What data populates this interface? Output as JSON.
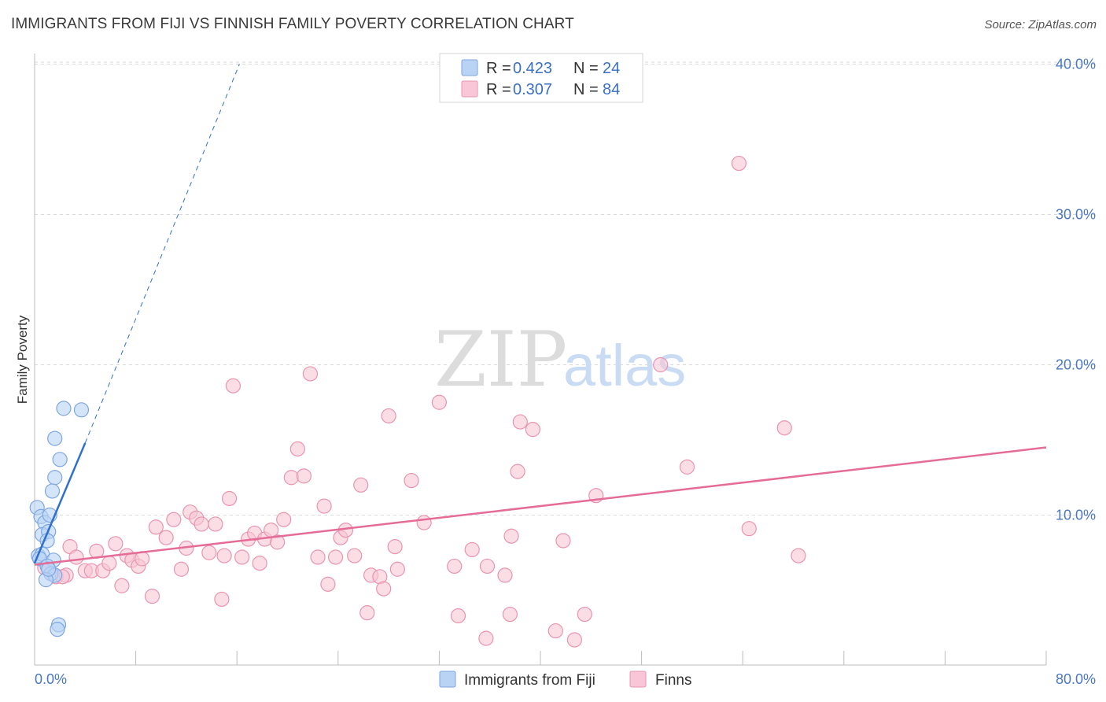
{
  "title": "IMMIGRANTS FROM FIJI VS FINNISH FAMILY POVERTY CORRELATION CHART",
  "source": "Source: ZipAtlas.com",
  "watermark": {
    "zip": "ZIP",
    "atlas": "atlas"
  },
  "colors": {
    "fiji_fill": "#b9d3f5",
    "fiji_stroke": "#7ea6e0",
    "fiji_line": "#2f6fd0",
    "finns_fill": "#f8c6d6",
    "finns_stroke": "#e994b0",
    "finns_line": "#e46c97",
    "grid": "#d9d9d9",
    "tick_text": "#4a78c4"
  },
  "legend": {
    "r_label": "R =",
    "n_label": "N =",
    "series": [
      {
        "r": "0.423",
        "n": "24"
      },
      {
        "r": "0.307",
        "n": "84"
      }
    ]
  },
  "chart_data": {
    "type": "scatter",
    "ylabel": "Family Poverty",
    "xlim": [
      0,
      80
    ],
    "ylim": [
      0,
      42
    ],
    "x_tick_labels": [
      "0.0%",
      "80.0%"
    ],
    "y_ticks": [
      10,
      20,
      30,
      40
    ],
    "y_tick_labels": [
      "10.0%",
      "20.0%",
      "30.0%",
      "40.0%"
    ],
    "grid": "horizontal dashed",
    "legend_position": "top-center",
    "series": [
      {
        "name": "Immigrants from Fiji",
        "points": [
          [
            0.2,
            10.5
          ],
          [
            0.5,
            9.9
          ],
          [
            0.8,
            9.5
          ],
          [
            1.2,
            10.0
          ],
          [
            0.6,
            8.7
          ],
          [
            1.1,
            8.9
          ],
          [
            1.0,
            8.3
          ],
          [
            0.3,
            7.3
          ],
          [
            0.6,
            7.4
          ],
          [
            0.4,
            7.1
          ],
          [
            1.5,
            7.0
          ],
          [
            1.0,
            6.6
          ],
          [
            1.3,
            6.1
          ],
          [
            1.6,
            6.0
          ],
          [
            0.9,
            5.7
          ],
          [
            1.6,
            12.5
          ],
          [
            1.4,
            11.6
          ],
          [
            1.6,
            15.1
          ],
          [
            2.0,
            13.7
          ],
          [
            2.3,
            17.1
          ],
          [
            3.7,
            17.0
          ],
          [
            1.9,
            2.7
          ],
          [
            1.8,
            2.4
          ],
          [
            1.1,
            6.4
          ]
        ],
        "trend_solid": [
          [
            0.0,
            6.8
          ],
          [
            4.0,
            14.8
          ]
        ],
        "trend_dashed": [
          [
            4.0,
            14.8
          ],
          [
            16.2,
            40.0
          ]
        ]
      },
      {
        "name": "Finns",
        "points": [
          [
            0.8,
            6.5
          ],
          [
            1.7,
            5.9
          ],
          [
            2.5,
            6.0
          ],
          [
            2.8,
            7.9
          ],
          [
            3.3,
            7.2
          ],
          [
            4.0,
            6.3
          ],
          [
            4.5,
            6.3
          ],
          [
            4.9,
            7.6
          ],
          [
            5.4,
            6.3
          ],
          [
            5.9,
            6.8
          ],
          [
            6.4,
            8.1
          ],
          [
            6.9,
            5.3
          ],
          [
            7.3,
            7.3
          ],
          [
            7.7,
            7.0
          ],
          [
            8.2,
            6.6
          ],
          [
            8.5,
            7.1
          ],
          [
            9.3,
            4.6
          ],
          [
            9.6,
            9.2
          ],
          [
            10.4,
            8.5
          ],
          [
            11.0,
            9.7
          ],
          [
            11.6,
            6.4
          ],
          [
            12.0,
            7.8
          ],
          [
            12.3,
            10.2
          ],
          [
            12.8,
            9.8
          ],
          [
            13.2,
            9.4
          ],
          [
            13.8,
            7.5
          ],
          [
            14.3,
            9.4
          ],
          [
            14.8,
            4.4
          ],
          [
            15.4,
            11.1
          ],
          [
            15.7,
            18.6
          ],
          [
            16.4,
            7.2
          ],
          [
            16.9,
            8.4
          ],
          [
            17.4,
            8.8
          ],
          [
            17.8,
            6.8
          ],
          [
            18.2,
            8.4
          ],
          [
            18.7,
            9.0
          ],
          [
            19.2,
            8.2
          ],
          [
            19.7,
            9.7
          ],
          [
            20.3,
            12.5
          ],
          [
            20.8,
            14.4
          ],
          [
            21.3,
            12.6
          ],
          [
            21.8,
            19.4
          ],
          [
            22.4,
            7.2
          ],
          [
            22.9,
            10.6
          ],
          [
            23.2,
            5.4
          ],
          [
            23.8,
            7.2
          ],
          [
            24.2,
            8.5
          ],
          [
            24.6,
            9.0
          ],
          [
            25.3,
            7.3
          ],
          [
            25.8,
            12.0
          ],
          [
            26.3,
            3.5
          ],
          [
            26.6,
            6.0
          ],
          [
            27.3,
            5.9
          ],
          [
            27.6,
            5.1
          ],
          [
            28.0,
            16.6
          ],
          [
            28.5,
            7.9
          ],
          [
            28.7,
            6.4
          ],
          [
            29.8,
            12.3
          ],
          [
            30.8,
            9.5
          ],
          [
            32.0,
            17.5
          ],
          [
            33.2,
            6.6
          ],
          [
            33.5,
            3.3
          ],
          [
            34.6,
            7.7
          ],
          [
            35.7,
            1.8
          ],
          [
            35.8,
            6.6
          ],
          [
            37.2,
            6.0
          ],
          [
            37.7,
            8.6
          ],
          [
            37.6,
            3.4
          ],
          [
            38.2,
            12.9
          ],
          [
            38.4,
            16.2
          ],
          [
            39.4,
            15.7
          ],
          [
            41.2,
            2.3
          ],
          [
            41.8,
            8.3
          ],
          [
            42.7,
            1.7
          ],
          [
            43.5,
            3.4
          ],
          [
            44.4,
            11.3
          ],
          [
            49.5,
            20.0
          ],
          [
            51.6,
            13.2
          ],
          [
            55.7,
            33.4
          ],
          [
            56.5,
            9.1
          ],
          [
            59.3,
            15.8
          ],
          [
            60.4,
            7.3
          ],
          [
            2.2,
            5.9
          ],
          [
            15.0,
            7.3
          ]
        ],
        "trend_solid": [
          [
            0.0,
            6.7
          ],
          [
            80.0,
            14.5
          ]
        ]
      }
    ]
  }
}
